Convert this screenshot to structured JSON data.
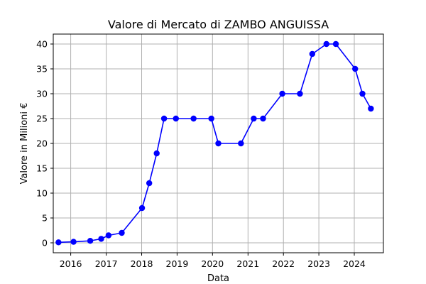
{
  "chart_data": {
    "type": "line",
    "title": "Valore di Mercato di ZAMBO ANGUISSA",
    "xlabel": "Data",
    "ylabel": "Valore in Milioni €",
    "x_ticks": [
      "2016",
      "2017",
      "2018",
      "2019",
      "2020",
      "2021",
      "2022",
      "2023",
      "2024"
    ],
    "y_ticks": [
      "0",
      "5",
      "10",
      "15",
      "20",
      "25",
      "30",
      "35",
      "40"
    ],
    "xlim": [
      "2015-07-05",
      "2024-10-27"
    ],
    "ylim": [
      -2,
      42
    ],
    "grid": true,
    "series": [
      {
        "color": "#0000ff",
        "x": [
          "2015-08-28",
          "2016-01-30",
          "2016-07-20",
          "2016-11-10",
          "2017-01-25",
          "2017-06-10",
          "2018-01-05",
          "2018-03-20",
          "2018-06-05",
          "2018-08-20",
          "2018-12-20",
          "2019-06-20",
          "2019-12-20",
          "2020-03-01",
          "2020-10-20",
          "2021-03-01",
          "2021-06-05",
          "2021-12-20",
          "2022-06-20",
          "2022-10-25",
          "2023-03-20",
          "2023-06-25",
          "2024-01-10",
          "2024-03-25",
          "2024-06-20"
        ],
        "values": [
          0.1,
          0.2,
          0.4,
          0.8,
          1.5,
          2,
          7,
          12,
          18,
          25,
          25,
          25,
          25,
          20,
          20,
          25,
          25,
          30,
          30,
          38,
          40,
          40,
          35,
          30,
          27
        ]
      }
    ]
  }
}
